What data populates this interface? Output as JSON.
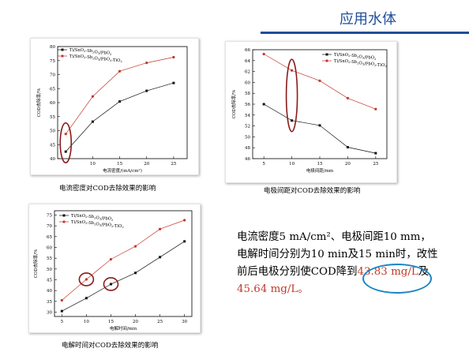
{
  "header": {
    "title": "应用水体"
  },
  "colors": {
    "black_series": "#111111",
    "red_series": "#c0392b",
    "highlight_red": "#8b1a1a",
    "highlight_blue": "#1a86c4",
    "title": "#1f4e9a"
  },
  "captions": [
    "电流密度对COD去除效果的影响",
    "电极间距对COD去除效果的影响",
    "电解时间对COD去除效果的影响"
  ],
  "summary": {
    "line1": "电流密度5 mA/cm²、电极间距10 mm，",
    "line2": "电解时间分别为10 min及15 min时，改性",
    "line3_a": "前后电极分别使COD降到",
    "line3_b": "43.83 mg/L",
    "line3_c": "及",
    "line4": "45.64 mg/L。"
  },
  "chart_data": [
    {
      "type": "line",
      "xlabel": "电流密度/(mA/cm²)",
      "ylabel": "COD去除率/%",
      "xticks": [
        10,
        15,
        20,
        25
      ],
      "yticks": [
        40,
        45,
        50,
        55,
        60,
        65,
        70,
        75,
        80
      ],
      "xlim": [
        3.5,
        27.5
      ],
      "ylim": [
        40,
        80
      ],
      "x": [
        5,
        10,
        15,
        20,
        25
      ],
      "legend": [
        "Ti/SnO2-Sb2O3/PbO2",
        "Ti/SnO2-Sb2O3/PbO2-TiO2"
      ],
      "series": [
        {
          "name": "Ti/SnO2-Sb2O3/PbO2",
          "color": "black",
          "values": [
            42.5,
            53.2,
            60.4,
            64.2,
            67.0
          ]
        },
        {
          "name": "Ti/SnO2-Sb2O3/PbO2-TiO2",
          "color": "red",
          "values": [
            48.8,
            62.2,
            71.2,
            74.2,
            76.2
          ]
        }
      ],
      "highlight_x": 5
    },
    {
      "type": "line",
      "xlabel": "电极间距/mm",
      "ylabel": "COD去除率/%",
      "xticks": [
        5,
        10,
        15,
        20,
        25
      ],
      "yticks": [
        46,
        48,
        50,
        52,
        54,
        56,
        58,
        60,
        62,
        64,
        66
      ],
      "xlim": [
        3,
        27
      ],
      "ylim": [
        46,
        66
      ],
      "x": [
        5,
        10,
        15,
        20,
        25
      ],
      "legend": [
        "Ti/SnO2-Sb2O3/PbO2",
        "Ti/SnO2-Sb2O3/PbO2-TiO2"
      ],
      "series": [
        {
          "name": "Ti/SnO2-Sb2O3/PbO2",
          "color": "black",
          "values": [
            56.0,
            53.0,
            52.1,
            48.1,
            47.0
          ]
        },
        {
          "name": "Ti/SnO2-Sb2O3/PbO2-TiO2",
          "color": "red",
          "values": [
            65.2,
            62.2,
            60.3,
            57.1,
            55.1
          ]
        }
      ],
      "highlight_x": 10
    },
    {
      "type": "line",
      "xlabel": "电解时间/min",
      "ylabel": "COD去除率/%",
      "xticks": [
        5,
        10,
        15,
        20,
        25,
        30
      ],
      "yticks": [
        30,
        35,
        40,
        45,
        50,
        55,
        60,
        65,
        70,
        75
      ],
      "xlim": [
        3.5,
        31.5
      ],
      "ylim": [
        28,
        77
      ],
      "x": [
        5,
        10,
        15,
        20,
        25,
        30
      ],
      "legend": [
        "Ti/SnO2-Sb2O3/PbO2",
        "Ti/SnO2-Sb2O3/PbO2-TiO2"
      ],
      "series": [
        {
          "name": "Ti/SnO2-Sb2O3/PbO2",
          "color": "black",
          "values": [
            30.5,
            36.5,
            43.0,
            48.2,
            55.5,
            62.8
          ]
        },
        {
          "name": "Ti/SnO2-Sb2O3/PbO2-TiO2",
          "color": "red",
          "values": [
            35.5,
            45.2,
            54.5,
            60.5,
            68.5,
            72.6
          ]
        }
      ],
      "highlight_points": [
        [
          10,
          45.2
        ],
        [
          15,
          43.0
        ]
      ]
    }
  ]
}
